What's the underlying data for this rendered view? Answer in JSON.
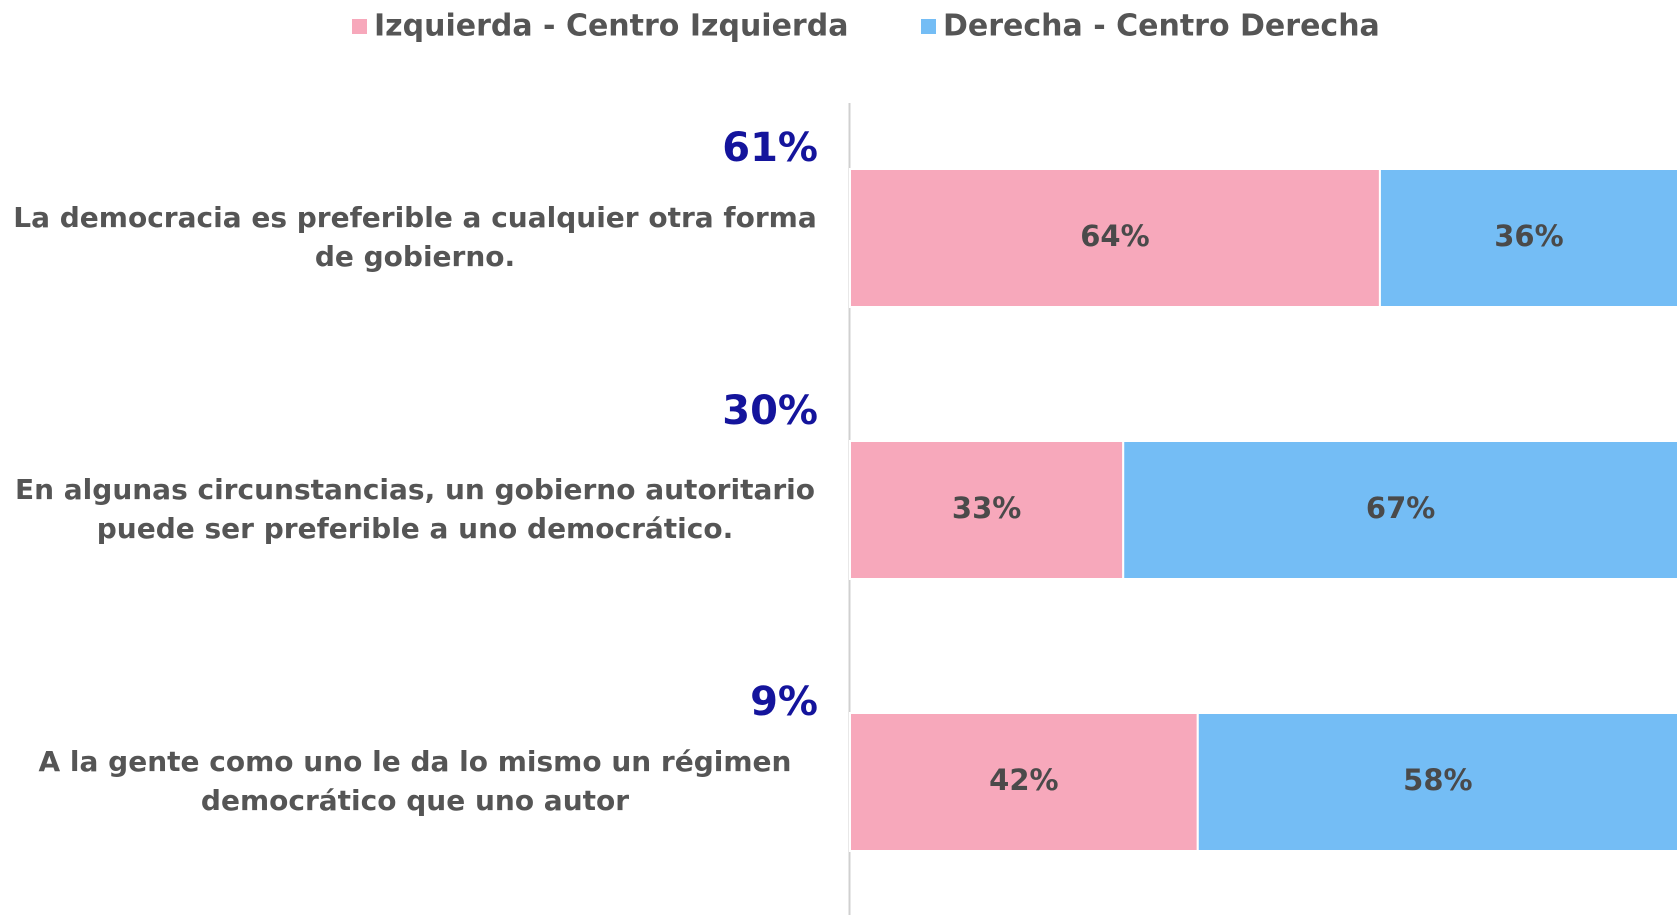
{
  "chart_data": {
    "type": "stacked-bar-horizontal",
    "categories": [
      "La democracia es preferible a cualquier otra forma de gobierno.",
      "En algunas circunstancias, un gobierno autoritario puede ser preferible a uno democrático.",
      "A la gente como uno le da lo mismo un régimen democrático que uno autor"
    ],
    "category_values": [
      61,
      30,
      9
    ],
    "category_value_labels": [
      "61%",
      "30%",
      "9%"
    ],
    "series": [
      {
        "name": "Izquierda - Centro Izquierda",
        "color": "#f7a8bb",
        "values": [
          64,
          33,
          42
        ],
        "value_labels": [
          "64%",
          "33%",
          "42%"
        ]
      },
      {
        "name": "Derecha - Centro Derecha",
        "color": "#74bdf5",
        "values": [
          36,
          67,
          58
        ],
        "value_labels": [
          "36%",
          "67%",
          "58%"
        ]
      }
    ],
    "xlim": [
      0,
      100
    ],
    "legend": "top"
  }
}
